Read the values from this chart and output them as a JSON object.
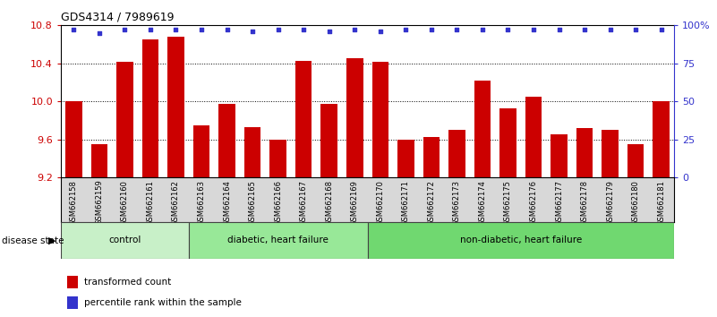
{
  "title": "GDS4314 / 7989619",
  "samples": [
    "GSM662158",
    "GSM662159",
    "GSM662160",
    "GSM662161",
    "GSM662162",
    "GSM662163",
    "GSM662164",
    "GSM662165",
    "GSM662166",
    "GSM662167",
    "GSM662168",
    "GSM662169",
    "GSM662170",
    "GSM662171",
    "GSM662172",
    "GSM662173",
    "GSM662174",
    "GSM662175",
    "GSM662176",
    "GSM662177",
    "GSM662178",
    "GSM662179",
    "GSM662180",
    "GSM662181"
  ],
  "bar_values": [
    10.0,
    9.55,
    10.42,
    10.65,
    10.68,
    9.75,
    9.97,
    9.73,
    9.6,
    10.43,
    9.97,
    10.45,
    10.42,
    9.6,
    9.63,
    9.7,
    10.22,
    9.93,
    10.05,
    9.65,
    9.72,
    9.7,
    9.55,
    10.0
  ],
  "percentile_values": [
    97,
    95,
    97,
    97,
    97,
    97,
    97,
    96,
    97,
    97,
    96,
    97,
    96,
    97,
    97,
    97,
    97,
    97,
    97,
    97,
    97,
    97,
    97,
    97
  ],
  "bar_color": "#cc0000",
  "percentile_color": "#3333cc",
  "ylim_left": [
    9.2,
    10.8
  ],
  "ylim_right": [
    0,
    100
  ],
  "yticks_left": [
    9.2,
    9.6,
    10.0,
    10.4,
    10.8
  ],
  "yticks_right": [
    0,
    25,
    50,
    75,
    100
  ],
  "ytick_labels_right": [
    "0",
    "25",
    "50",
    "75",
    "100%"
  ],
  "gridlines": [
    9.6,
    10.0,
    10.4
  ],
  "group_defs": [
    {
      "label": "control",
      "start": 0,
      "end": 4,
      "color": "#c8f0c8"
    },
    {
      "label": "diabetic, heart failure",
      "start": 5,
      "end": 11,
      "color": "#98e898"
    },
    {
      "label": "non-diabetic, heart failure",
      "start": 12,
      "end": 23,
      "color": "#70d870"
    }
  ],
  "disease_state_label": "disease state"
}
